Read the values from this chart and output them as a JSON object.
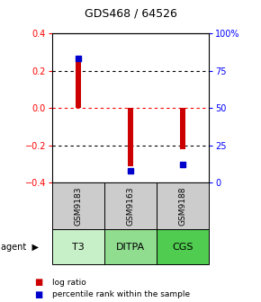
{
  "title": "GDS468 / 64526",
  "bar_values": [
    0.27,
    -0.31,
    -0.22
  ],
  "percentile_values": [
    83,
    8,
    12
  ],
  "sample_labels": [
    "GSM9183",
    "GSM9163",
    "GSM9188"
  ],
  "agent_labels": [
    "T3",
    "DITPA",
    "CGS"
  ],
  "bar_color": "#cc0000",
  "percentile_color": "#0000cc",
  "ylim_left": [
    -0.4,
    0.4
  ],
  "ylim_right": [
    0,
    100
  ],
  "yticks_left": [
    -0.4,
    -0.2,
    0,
    0.2,
    0.4
  ],
  "yticks_right": [
    0,
    25,
    50,
    75,
    100
  ],
  "ytick_labels_right": [
    "0",
    "25",
    "50",
    "75",
    "100%"
  ],
  "bar_width": 0.12,
  "background_color": "#ffffff",
  "plot_bg_color": "#ffffff",
  "agent_bg_color_light": "#c8f0c8",
  "agent_bg_color_mid": "#90ee90",
  "agent_bg_color_dark": "#50cc50",
  "agent_bg_colors": [
    "#c8f0c8",
    "#90dd90",
    "#50cc50"
  ],
  "sample_bg_color": "#cccccc",
  "legend_items": [
    "log ratio",
    "percentile rank within the sample"
  ],
  "x_positions": [
    1,
    2,
    3
  ],
  "xlim": [
    0.5,
    3.5
  ]
}
